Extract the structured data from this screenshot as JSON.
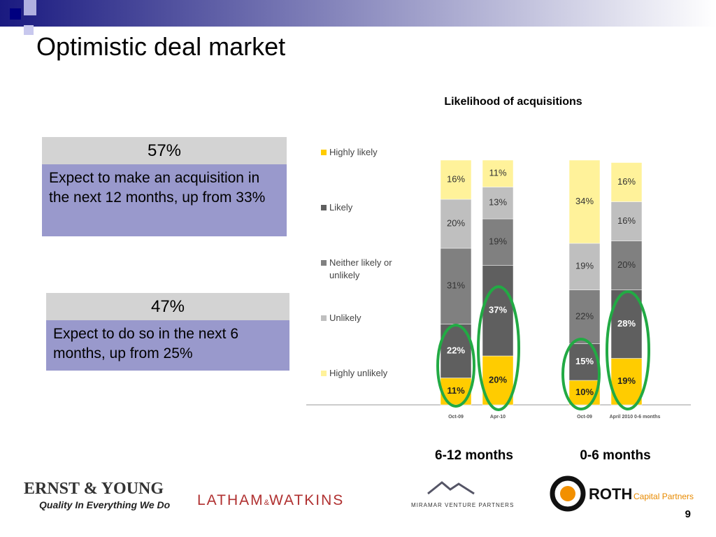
{
  "slide": {
    "title": "Optimistic deal market",
    "page_number": "9",
    "boxes": [
      {
        "header": "57%",
        "text": "Expect to make an acquisition in the next 12 months, up from 33%"
      },
      {
        "header": "47%",
        "text": "Expect to do so in the next 6 months, up from 25%"
      }
    ],
    "logos": {
      "ey": "ERNST & YOUNG",
      "ey_tagline": "Quality In Everything We Do",
      "latham": "LATHAM",
      "latham_amp": "&",
      "watkins": "WATKINS",
      "miramar": "MIRAMAR VENTURE PARTNERS",
      "roth": "ROTH",
      "roth_sub": "Capital Partners"
    }
  },
  "chart_data": {
    "type": "stacked_bar",
    "title": "Likelihood of acquisitions",
    "categories": [
      "Oct-09",
      "Apr-10",
      "Oct-09",
      "April 2010  0-6 months"
    ],
    "groups": [
      "6-12 months",
      "0-6 months"
    ],
    "series": [
      {
        "name": "Highly likely",
        "color": "#ffcc00",
        "values": [
          11,
          20,
          10,
          19
        ],
        "value_labels": [
          "11%",
          "20%",
          "10%",
          "19%"
        ]
      },
      {
        "name": "Likely",
        "color": "#5f5f5f",
        "values": [
          22,
          37,
          15,
          28
        ],
        "value_labels": [
          "22%",
          "37%",
          "15%",
          "28%"
        ]
      },
      {
        "name": "Neither likely or unlikely",
        "color": "#808080",
        "values": [
          31,
          19,
          22,
          20
        ],
        "value_labels": [
          "31%",
          "19%",
          "22%",
          "20%"
        ]
      },
      {
        "name": "Unlikely",
        "color": "#bfbfbf",
        "values": [
          20,
          13,
          19,
          16
        ],
        "value_labels": [
          "20%",
          "13%",
          "19%",
          "16%"
        ]
      },
      {
        "name": "Highly unlikely",
        "color": "#fff29a",
        "values": [
          16,
          11,
          34,
          16
        ],
        "value_labels": [
          "16%",
          "11%",
          "34%",
          "16%"
        ]
      }
    ],
    "legend": "left"
  }
}
